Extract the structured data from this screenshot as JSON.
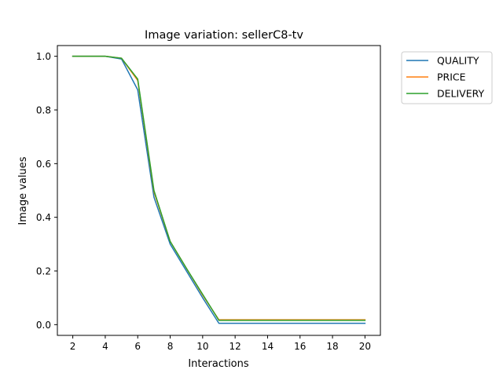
{
  "chart_data": {
    "type": "line",
    "title": "Image variation: sellerC8-tv",
    "xlabel": "Interactions",
    "ylabel": "Image values",
    "xlim": [
      1.05,
      20.95
    ],
    "ylim": [
      -0.04,
      1.04
    ],
    "xticks": [
      2,
      4,
      6,
      8,
      10,
      12,
      14,
      16,
      18,
      20
    ],
    "yticks": [
      0.0,
      0.2,
      0.4,
      0.6,
      0.8,
      1.0
    ],
    "grid": false,
    "legend_position": "outside-top-right",
    "x": [
      2,
      3,
      4,
      5,
      6,
      7,
      8,
      9,
      10,
      11,
      12,
      13,
      14,
      15,
      16,
      17,
      18,
      19,
      20
    ],
    "series": [
      {
        "name": "QUALITY",
        "color": "#1f77b4",
        "values": [
          1.0,
          1.0,
          1.0,
          0.99,
          0.875,
          0.475,
          0.3,
          0.2,
          0.1,
          0.005,
          0.005,
          0.005,
          0.005,
          0.005,
          0.005,
          0.005,
          0.005,
          0.005,
          0.005
        ]
      },
      {
        "name": "PRICE",
        "color": "#ff7f0e",
        "values": [
          1.0,
          1.0,
          1.0,
          0.993,
          0.91,
          0.495,
          0.31,
          0.21,
          0.11,
          0.018,
          0.018,
          0.018,
          0.018,
          0.018,
          0.018,
          0.018,
          0.018,
          0.018,
          0.018
        ]
      },
      {
        "name": "DELIVERY",
        "color": "#2ca02c",
        "values": [
          1.0,
          1.0,
          1.0,
          0.993,
          0.915,
          0.5,
          0.31,
          0.21,
          0.113,
          0.016,
          0.016,
          0.016,
          0.016,
          0.016,
          0.016,
          0.016,
          0.016,
          0.016,
          0.016
        ]
      }
    ]
  }
}
